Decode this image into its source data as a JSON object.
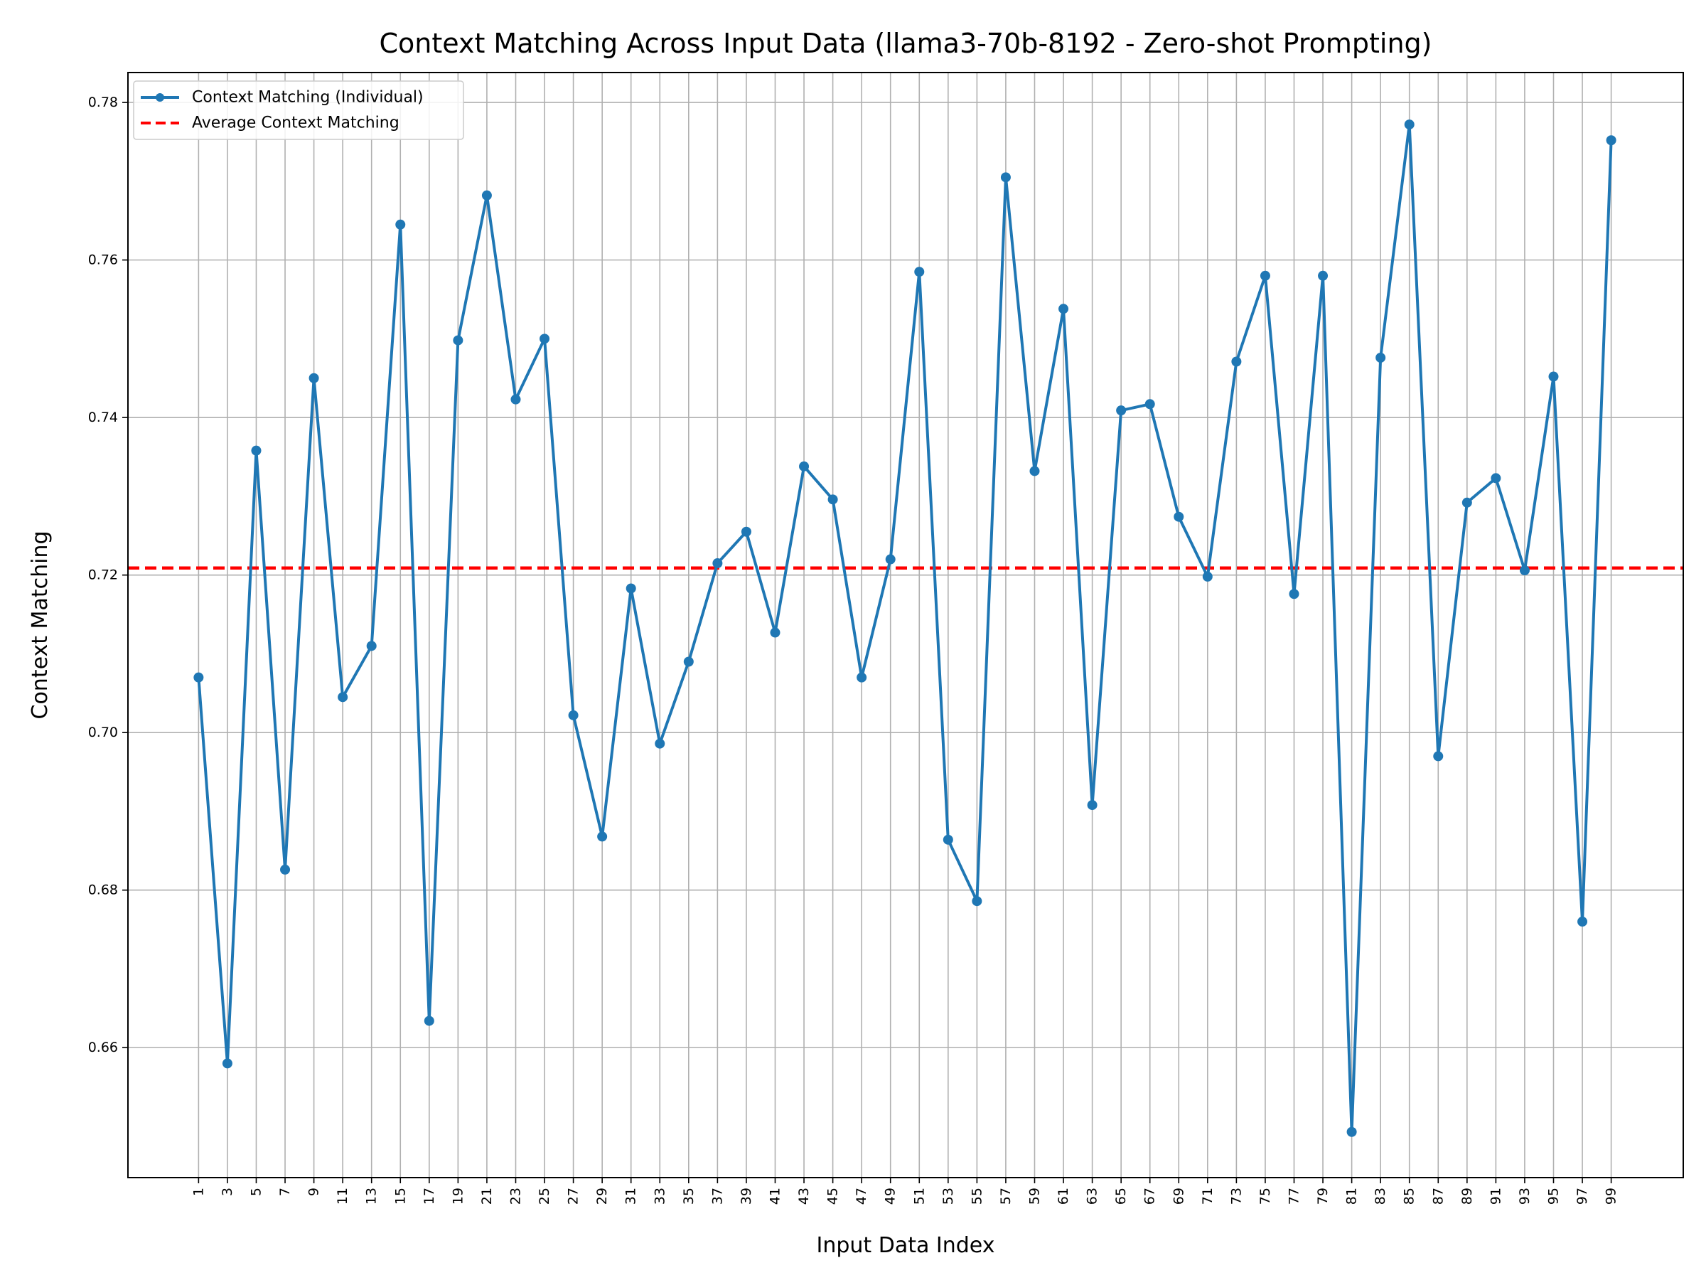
{
  "chart_data": {
    "type": "line",
    "title": "Context Matching Across Input Data (llama3-70b-8192 - Zero-shot Prompting)",
    "xlabel": "Input Data Index",
    "ylabel": "Context Matching",
    "x": [
      1,
      3,
      5,
      7,
      9,
      11,
      13,
      15,
      17,
      19,
      21,
      23,
      25,
      27,
      29,
      31,
      33,
      35,
      37,
      39,
      41,
      43,
      45,
      47,
      49,
      51,
      53,
      55,
      57,
      59,
      61,
      63,
      65,
      67,
      69,
      71,
      73,
      75,
      77,
      79,
      81,
      83,
      85,
      87,
      89,
      91,
      93,
      95,
      97,
      99
    ],
    "xticks": [
      "1",
      "3",
      "5",
      "7",
      "9",
      "11",
      "13",
      "15",
      "17",
      "19",
      "21",
      "23",
      "25",
      "27",
      "29",
      "31",
      "33",
      "35",
      "37",
      "39",
      "41",
      "43",
      "45",
      "47",
      "49",
      "51",
      "53",
      "55",
      "57",
      "59",
      "61",
      "63",
      "65",
      "67",
      "69",
      "71",
      "73",
      "75",
      "77",
      "79",
      "81",
      "83",
      "85",
      "87",
      "89",
      "91",
      "93",
      "95",
      "97",
      "99"
    ],
    "xlim": [
      -3.9,
      104.0
    ],
    "ylim": [
      0.6435,
      0.7838
    ],
    "yticks": [
      0.66,
      0.68,
      0.7,
      0.72,
      0.74,
      0.76,
      0.78
    ],
    "ytick_labels": [
      "0.66",
      "0.68",
      "0.70",
      "0.72",
      "0.74",
      "0.76",
      "0.78"
    ],
    "grid": true,
    "legend_position": "top-left",
    "series": [
      {
        "name": "Context Matching (Individual)",
        "color": "#1f77b4",
        "style": "solid-with-markers",
        "values": [
          0.707,
          0.658,
          0.7358,
          0.6826,
          0.745,
          0.7045,
          0.711,
          0.7645,
          0.6634,
          0.7498,
          0.7682,
          0.7423,
          0.75,
          0.7022,
          0.6868,
          0.7183,
          0.6986,
          0.709,
          0.7215,
          0.7255,
          0.7127,
          0.7338,
          0.7296,
          0.707,
          0.722,
          0.7585,
          0.6864,
          0.6786,
          0.7705,
          0.7332,
          0.7538,
          0.6908,
          0.7409,
          0.7417,
          0.7274,
          0.7198,
          0.7471,
          0.758,
          0.7176,
          0.758,
          0.6493,
          0.7476,
          0.7772,
          0.697,
          0.7292,
          0.7323,
          0.7206,
          0.7452,
          0.676,
          0.7752
        ]
      },
      {
        "name": "Average Context Matching",
        "color": "#ff0000",
        "style": "dashed",
        "value": 0.7209
      }
    ]
  }
}
